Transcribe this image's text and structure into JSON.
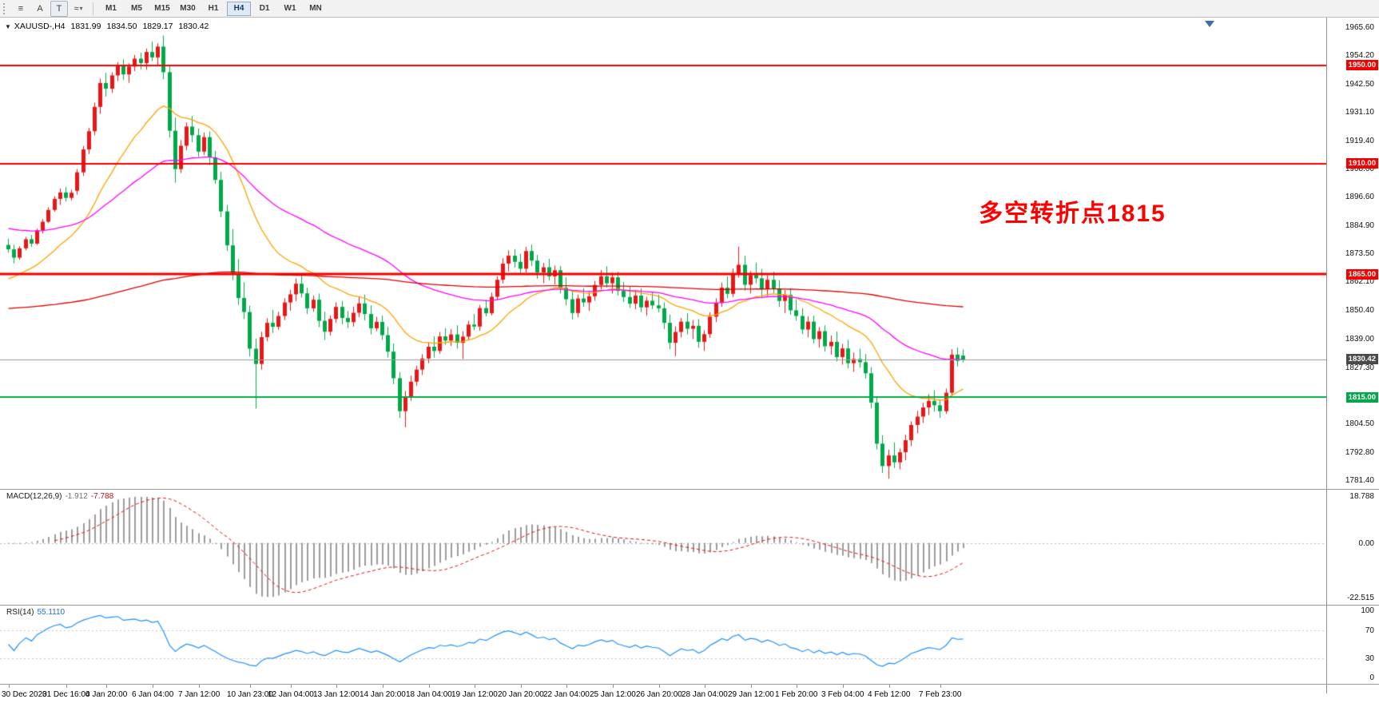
{
  "toolbar": {
    "tool_icons": [
      {
        "name": "indicators-menu-icon",
        "glyph": "≡"
      },
      {
        "name": "cursor-tool-icon",
        "glyph": "A"
      },
      {
        "name": "text-tool-icon",
        "glyph": "T",
        "boxed": true
      },
      {
        "name": "line-studies-icon",
        "glyph": "≈",
        "caret": "▾"
      }
    ],
    "timeframes": [
      "M1",
      "M5",
      "M15",
      "M30",
      "H1",
      "H4",
      "D1",
      "W1",
      "MN"
    ],
    "active_timeframe": "H4"
  },
  "chart_header": {
    "dropdown_icon": "▼",
    "title": "XAUUSD-,H4",
    "open": "1831.99",
    "high": "1834.50",
    "low": "1829.17",
    "close": "1830.42"
  },
  "annotation": {
    "text": "多空转折点1815",
    "color": "#ff0000"
  },
  "chart_data": {
    "type": "candlestick",
    "title": "XAUUSD-,H4",
    "symbol": "XAUUSD-",
    "timeframe": "H4",
    "ylim": [
      1777.8,
      1969.4
    ],
    "bull_color": "#e81717",
    "bear_color": "#00a84a",
    "price_axis_labels": [
      "1965.60",
      "1954.20",
      "1942.50",
      "1931.10",
      "1919.40",
      "1908.00",
      "1896.60",
      "1884.90",
      "1873.50",
      "1862.10",
      "1850.40",
      "1839.00",
      "1827.30",
      "1815.60",
      "1804.50",
      "1792.80",
      "1781.40"
    ],
    "hlines": [
      {
        "label": "1950.00",
        "price": 1950.0,
        "color": "#f50000",
        "width": 2
      },
      {
        "label": "1910.00",
        "price": 1910.0,
        "color": "#f50000",
        "width": 2
      },
      {
        "label": "1865.00",
        "price": 1865.0,
        "color": "#f50000",
        "width": 3
      },
      {
        "label": "1830.42",
        "price": 1830.42,
        "color": "#999999",
        "width": 1,
        "tag_color": "#4a4a4a"
      },
      {
        "label": "1815.00",
        "price": 1815.0,
        "color": "#00a84a",
        "width": 2
      }
    ],
    "overlays": [
      {
        "name": "ma-fast-orange",
        "color": "#ffa200",
        "period": 20,
        "seed": 1862
      },
      {
        "name": "ma-mid-magenta",
        "color": "#ff00ff",
        "period": 55,
        "seed": 1884
      },
      {
        "name": "ma-slow-red",
        "color": "#e00000",
        "period": 300,
        "seed": 1851
      }
    ],
    "indicators": {
      "macd": {
        "label": "MACD(12,26,9)",
        "fast": 12,
        "slow": 26,
        "signal": 9,
        "main_value": "-1.912",
        "signal_value": "-7.788",
        "axis_labels": [
          "18.788",
          "0.00",
          "-22.515"
        ],
        "histogram_color": "#9c9c9c",
        "signal_color": "#e01010"
      },
      "rsi": {
        "label": "RSI(14)",
        "period": 14,
        "value": "55.1110",
        "axis_labels": [
          "100",
          "70",
          "30",
          "0"
        ],
        "levels": [
          70,
          30
        ],
        "color": "#1e90ff"
      }
    },
    "time_labels": [
      [
        "30 Dec 2020",
        0
      ],
      [
        "31 Dec 16:00",
        10
      ],
      [
        "4 Jan 20:00",
        17
      ],
      [
        "6 Jan 04:00",
        25
      ],
      [
        "7 Jan 12:00",
        33
      ],
      [
        "10 Jan 23:00",
        42
      ],
      [
        "12 Jan 04:00",
        49
      ],
      [
        "13 Jan 12:00",
        57
      ],
      [
        "14 Jan 20:00",
        65
      ],
      [
        "18 Jan 04:00",
        73
      ],
      [
        "19 Jan 12:00",
        81
      ],
      [
        "20 Jan 20:00",
        89
      ],
      [
        "22 Jan 04:00",
        97
      ],
      [
        "25 Jan 12:00",
        105
      ],
      [
        "26 Jan 20:00",
        113
      ],
      [
        "28 Jan 04:00",
        121
      ],
      [
        "29 Jan 12:00",
        129
      ],
      [
        "1 Feb 20:00",
        137
      ],
      [
        "3 Feb 04:00",
        145
      ],
      [
        "4 Feb 12:00",
        153
      ],
      [
        "7 Feb 23:00",
        162
      ]
    ],
    "candles": [
      [
        1877.0,
        1879.5,
        1873.8,
        1875.2
      ],
      [
        1875.2,
        1877.0,
        1869.5,
        1871.8
      ],
      [
        1871.8,
        1876.4,
        1870.9,
        1875.6
      ],
      [
        1875.6,
        1880.2,
        1874.8,
        1879.3
      ],
      [
        1879.3,
        1881.0,
        1876.2,
        1877.5
      ],
      [
        1877.5,
        1883.6,
        1877.0,
        1882.9
      ],
      [
        1882.9,
        1887.5,
        1881.6,
        1886.4
      ],
      [
        1886.4,
        1892.3,
        1885.9,
        1891.2
      ],
      [
        1891.2,
        1896.8,
        1890.5,
        1895.7
      ],
      [
        1895.7,
        1899.9,
        1893.2,
        1898.3
      ],
      [
        1898.3,
        1900.5,
        1894.6,
        1896.1
      ],
      [
        1896.1,
        1899.4,
        1895.0,
        1898.2
      ],
      [
        1899.0,
        1907.8,
        1897.4,
        1906.5
      ],
      [
        1906.5,
        1917.2,
        1905.0,
        1915.8
      ],
      [
        1915.8,
        1924.6,
        1913.9,
        1923.2
      ],
      [
        1923.2,
        1934.8,
        1921.5,
        1933.1
      ],
      [
        1933.1,
        1944.6,
        1930.2,
        1942.8
      ],
      [
        1942.8,
        1946.9,
        1937.3,
        1940.5
      ],
      [
        1940.5,
        1947.2,
        1938.8,
        1945.9
      ],
      [
        1945.9,
        1951.3,
        1943.6,
        1949.8
      ],
      [
        1949.8,
        1952.4,
        1944.1,
        1946.3
      ],
      [
        1946.3,
        1950.8,
        1942.9,
        1949.5
      ],
      [
        1949.5,
        1954.2,
        1947.6,
        1952.7
      ],
      [
        1952.7,
        1955.1,
        1948.3,
        1950.9
      ],
      [
        1950.9,
        1956.8,
        1948.2,
        1955.4
      ],
      [
        1955.4,
        1959.6,
        1951.7,
        1953.2
      ],
      [
        1953.2,
        1958.9,
        1949.8,
        1957.6
      ],
      [
        1957.6,
        1962.1,
        1944.3,
        1947.2
      ],
      [
        1947.2,
        1949.8,
        1920.6,
        1923.4
      ],
      [
        1923.4,
        1928.7,
        1902.3,
        1907.8
      ],
      [
        1907.8,
        1919.6,
        1906.2,
        1917.3
      ],
      [
        1917.3,
        1926.8,
        1915.4,
        1925.1
      ],
      [
        1925.1,
        1929.4,
        1918.7,
        1921.6
      ],
      [
        1921.6,
        1924.3,
        1912.8,
        1914.9
      ],
      [
        1914.9,
        1922.7,
        1913.5,
        1920.8
      ],
      [
        1920.8,
        1923.1,
        1909.4,
        1912.6
      ],
      [
        1912.6,
        1915.2,
        1901.8,
        1903.4
      ],
      [
        1903.4,
        1906.7,
        1888.3,
        1890.6
      ],
      [
        1890.6,
        1893.2,
        1874.5,
        1876.8
      ],
      [
        1876.8,
        1883.4,
        1862.7,
        1865.3
      ],
      [
        1865.3,
        1871.2,
        1852.6,
        1855.4
      ],
      [
        1855.4,
        1861.8,
        1846.9,
        1849.7
      ],
      [
        1849.7,
        1852.3,
        1831.6,
        1834.8
      ],
      [
        1834.8,
        1838.9,
        1810.4,
        1828.6
      ],
      [
        1828.6,
        1841.7,
        1826.3,
        1839.5
      ],
      [
        1839.5,
        1847.2,
        1837.8,
        1845.3
      ],
      [
        1845.3,
        1850.6,
        1841.2,
        1843.7
      ],
      [
        1843.7,
        1849.8,
        1842.5,
        1848.1
      ],
      [
        1848.1,
        1855.3,
        1846.4,
        1853.6
      ],
      [
        1853.6,
        1858.7,
        1850.2,
        1856.9
      ],
      [
        1856.9,
        1863.4,
        1854.1,
        1861.2
      ],
      [
        1861.2,
        1864.8,
        1855.6,
        1857.3
      ],
      [
        1857.3,
        1859.6,
        1848.9,
        1851.2
      ],
      [
        1851.2,
        1856.4,
        1849.8,
        1854.7
      ],
      [
        1854.7,
        1857.2,
        1843.6,
        1846.1
      ],
      [
        1846.1,
        1849.8,
        1838.4,
        1841.7
      ],
      [
        1841.7,
        1848.3,
        1840.2,
        1846.9
      ],
      [
        1846.9,
        1853.6,
        1845.3,
        1851.8
      ],
      [
        1851.8,
        1854.2,
        1844.7,
        1847.3
      ],
      [
        1847.3,
        1850.1,
        1843.2,
        1845.6
      ],
      [
        1845.6,
        1851.9,
        1843.8,
        1849.4
      ],
      [
        1849.4,
        1855.7,
        1847.6,
        1853.2
      ],
      [
        1853.2,
        1856.8,
        1846.3,
        1848.9
      ],
      [
        1848.9,
        1852.4,
        1840.6,
        1843.1
      ],
      [
        1843.1,
        1847.8,
        1841.9,
        1845.7
      ],
      [
        1845.7,
        1848.2,
        1838.4,
        1840.3
      ],
      [
        1840.3,
        1843.7,
        1831.2,
        1833.6
      ],
      [
        1833.6,
        1836.9,
        1820.4,
        1822.8
      ],
      [
        1822.8,
        1825.3,
        1806.7,
        1809.4
      ],
      [
        1809.4,
        1817.6,
        1802.9,
        1815.2
      ],
      [
        1815.2,
        1823.8,
        1813.6,
        1821.4
      ],
      [
        1821.4,
        1827.9,
        1819.7,
        1826.3
      ],
      [
        1826.3,
        1832.6,
        1824.1,
        1830.8
      ],
      [
        1830.8,
        1837.4,
        1828.9,
        1835.6
      ],
      [
        1835.6,
        1839.8,
        1831.2,
        1833.9
      ],
      [
        1833.9,
        1841.6,
        1832.7,
        1839.8
      ],
      [
        1839.8,
        1843.2,
        1836.4,
        1838.1
      ],
      [
        1838.1,
        1842.7,
        1835.9,
        1840.6
      ],
      [
        1840.6,
        1844.3,
        1834.8,
        1837.2
      ],
      [
        1837.2,
        1841.9,
        1830.6,
        1839.7
      ],
      [
        1839.7,
        1846.2,
        1838.4,
        1844.6
      ],
      [
        1844.6,
        1848.9,
        1842.3,
        1843.8
      ],
      [
        1843.8,
        1852.6,
        1842.1,
        1851.3
      ],
      [
        1851.3,
        1854.7,
        1847.9,
        1849.2
      ],
      [
        1849.2,
        1857.6,
        1848.3,
        1855.9
      ],
      [
        1855.9,
        1864.2,
        1854.6,
        1862.8
      ],
      [
        1862.8,
        1871.6,
        1861.3,
        1869.4
      ],
      [
        1869.4,
        1874.8,
        1866.2,
        1872.6
      ],
      [
        1872.6,
        1875.3,
        1867.8,
        1870.1
      ],
      [
        1870.1,
        1873.4,
        1865.6,
        1867.3
      ],
      [
        1867.3,
        1876.2,
        1865.8,
        1874.5
      ],
      [
        1874.5,
        1877.1,
        1868.4,
        1870.6
      ],
      [
        1870.6,
        1872.9,
        1863.2,
        1865.8
      ],
      [
        1865.8,
        1869.7,
        1861.4,
        1867.9
      ],
      [
        1867.9,
        1871.3,
        1862.6,
        1864.2
      ],
      [
        1864.2,
        1868.6,
        1860.9,
        1866.7
      ],
      [
        1866.7,
        1868.4,
        1857.3,
        1859.6
      ],
      [
        1859.6,
        1863.8,
        1852.4,
        1854.9
      ],
      [
        1854.9,
        1858.2,
        1846.7,
        1849.3
      ],
      [
        1849.3,
        1856.8,
        1847.6,
        1855.2
      ],
      [
        1855.2,
        1859.4,
        1851.8,
        1853.6
      ],
      [
        1853.6,
        1857.9,
        1850.2,
        1856.1
      ],
      [
        1856.1,
        1862.4,
        1854.3,
        1860.7
      ],
      [
        1860.7,
        1866.8,
        1858.9,
        1864.2
      ],
      [
        1864.2,
        1868.3,
        1859.6,
        1861.4
      ],
      [
        1861.4,
        1865.7,
        1857.2,
        1863.8
      ],
      [
        1863.8,
        1866.1,
        1856.4,
        1858.3
      ],
      [
        1858.3,
        1861.9,
        1853.7,
        1855.8
      ],
      [
        1855.8,
        1860.2,
        1851.4,
        1853.1
      ],
      [
        1853.1,
        1858.6,
        1850.8,
        1856.4
      ],
      [
        1856.4,
        1859.3,
        1849.7,
        1851.6
      ],
      [
        1851.6,
        1855.9,
        1848.2,
        1854.3
      ],
      [
        1854.3,
        1857.6,
        1850.9,
        1852.4
      ],
      [
        1852.4,
        1856.8,
        1849.6,
        1851.2
      ],
      [
        1851.2,
        1853.6,
        1842.8,
        1845.3
      ],
      [
        1845.3,
        1848.7,
        1834.6,
        1837.2
      ],
      [
        1837.2,
        1843.9,
        1831.8,
        1841.6
      ],
      [
        1841.6,
        1847.3,
        1839.4,
        1845.8
      ],
      [
        1845.8,
        1849.2,
        1840.6,
        1842.9
      ],
      [
        1842.9,
        1846.4,
        1838.7,
        1844.1
      ],
      [
        1844.1,
        1846.8,
        1835.2,
        1837.6
      ],
      [
        1837.6,
        1842.3,
        1833.9,
        1840.7
      ],
      [
        1840.7,
        1849.6,
        1839.2,
        1847.8
      ],
      [
        1847.8,
        1855.3,
        1845.6,
        1853.4
      ],
      [
        1853.4,
        1861.7,
        1851.8,
        1859.6
      ],
      [
        1859.6,
        1864.2,
        1855.3,
        1857.1
      ],
      [
        1857.1,
        1867.4,
        1855.8,
        1865.2
      ],
      [
        1865.2,
        1876.3,
        1863.7,
        1868.9
      ],
      [
        1868.9,
        1872.6,
        1858.4,
        1860.8
      ],
      [
        1860.8,
        1866.3,
        1857.2,
        1864.7
      ],
      [
        1864.7,
        1869.8,
        1861.3,
        1863.4
      ],
      [
        1863.4,
        1867.2,
        1855.6,
        1858.9
      ],
      [
        1858.9,
        1864.6,
        1856.2,
        1862.8
      ],
      [
        1862.8,
        1866.1,
        1857.4,
        1859.3
      ],
      [
        1859.3,
        1862.7,
        1851.8,
        1854.2
      ],
      [
        1854.2,
        1858.6,
        1849.3,
        1856.7
      ],
      [
        1856.7,
        1859.2,
        1848.6,
        1850.4
      ],
      [
        1850.4,
        1854.8,
        1846.2,
        1848.1
      ],
      [
        1848.1,
        1851.3,
        1840.7,
        1842.6
      ],
      [
        1842.6,
        1847.9,
        1839.4,
        1845.8
      ],
      [
        1845.8,
        1848.2,
        1836.9,
        1838.7
      ],
      [
        1838.7,
        1843.6,
        1835.2,
        1841.9
      ],
      [
        1841.9,
        1844.3,
        1833.6,
        1835.8
      ],
      [
        1835.8,
        1840.2,
        1832.4,
        1837.6
      ],
      [
        1837.6,
        1841.8,
        1829.6,
        1831.4
      ],
      [
        1831.4,
        1836.7,
        1828.3,
        1834.9
      ],
      [
        1834.9,
        1838.4,
        1826.8,
        1828.9
      ],
      [
        1828.9,
        1833.2,
        1825.4,
        1830.6
      ],
      [
        1830.6,
        1834.8,
        1827.1,
        1829.3
      ],
      [
        1829.3,
        1832.6,
        1822.7,
        1824.8
      ],
      [
        1824.8,
        1827.3,
        1810.6,
        1812.9
      ],
      [
        1812.9,
        1815.4,
        1793.8,
        1796.2
      ],
      [
        1796.2,
        1799.6,
        1784.3,
        1787.1
      ],
      [
        1787.1,
        1793.8,
        1781.9,
        1791.4
      ],
      [
        1791.4,
        1796.7,
        1786.3,
        1788.6
      ],
      [
        1788.6,
        1794.2,
        1785.8,
        1792.7
      ],
      [
        1792.7,
        1799.8,
        1789.4,
        1797.6
      ],
      [
        1797.6,
        1805.3,
        1795.2,
        1803.8
      ],
      [
        1803.8,
        1809.6,
        1800.4,
        1807.2
      ],
      [
        1807.2,
        1812.8,
        1804.6,
        1810.9
      ],
      [
        1810.9,
        1816.3,
        1807.8,
        1813.6
      ],
      [
        1813.6,
        1817.9,
        1809.2,
        1811.8
      ],
      [
        1811.8,
        1814.2,
        1806.7,
        1809.4
      ],
      [
        1809.4,
        1818.6,
        1808.3,
        1816.9
      ],
      [
        1816.9,
        1834.6,
        1815.8,
        1832.4
      ],
      [
        1832.4,
        1835.2,
        1827.6,
        1829.8
      ],
      [
        1832.0,
        1834.5,
        1829.2,
        1830.4
      ]
    ]
  }
}
